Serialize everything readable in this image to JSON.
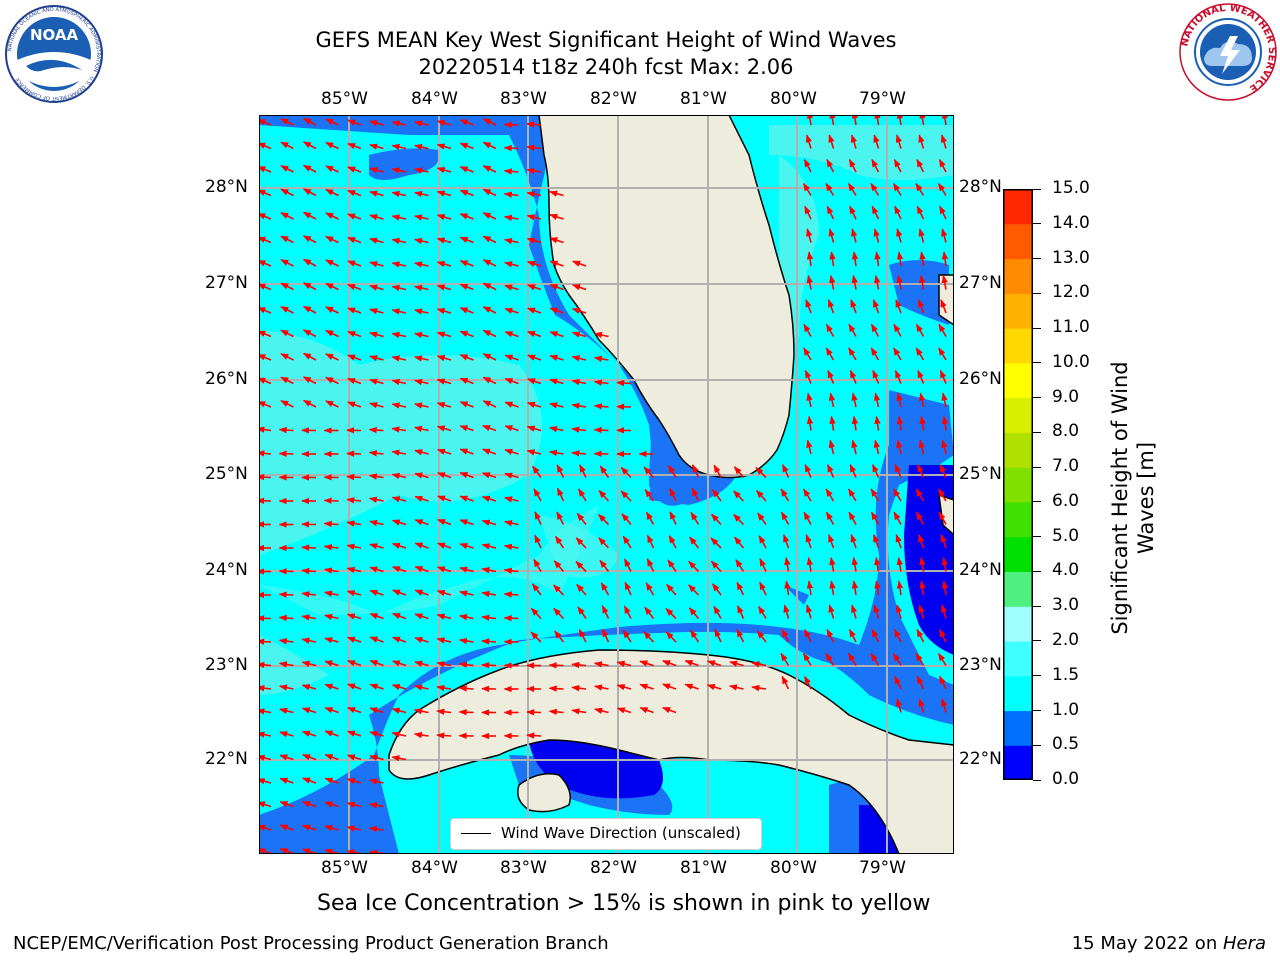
{
  "title": {
    "line1": "GEFS MEAN Key West Significant Height of Wind Waves",
    "line2": "20220514 t18z 240h fcst   Max: 2.06"
  },
  "logos": {
    "noaa_text": "NOAA",
    "noaa_ring": "NATIONAL OCEANIC AND ATMOSPHERIC ADMINISTRATION · U.S. DEPARTMENT OF COMMERCE",
    "nws_ring": "NATIONAL WEATHER SERVICE"
  },
  "map": {
    "lon_labels": [
      "85°W",
      "84°W",
      "83°W",
      "82°W",
      "81°W",
      "80°W",
      "79°W"
    ],
    "lat_labels": [
      "28°N",
      "27°N",
      "26°N",
      "25°N",
      "24°N",
      "23°N",
      "22°N"
    ],
    "legend_label": "Wind Wave Direction (unscaled)",
    "colors": {
      "land": "#eeecdc",
      "sea_1_0_1_5": "#00ffff",
      "sea_0_5_1_0": "#1a74f5",
      "sea_0_0_0_5": "#0000f0",
      "sea_1_5_2_0": "#4af5f0",
      "arrow": "#ff0000",
      "grid": "#b0b0b0"
    }
  },
  "colorbar": {
    "label_line1": "Significant Height of Wind",
    "label_line2": "Waves [m]",
    "ticks": [
      "0.0",
      "0.5",
      "1.0",
      "1.5",
      "2.0",
      "3.0",
      "4.0",
      "5.0",
      "6.0",
      "7.0",
      "8.0",
      "9.0",
      "10.0",
      "11.0",
      "12.0",
      "13.0",
      "14.0",
      "15.0"
    ],
    "colors": [
      "#0000ff",
      "#0070ff",
      "#00ffff",
      "#40ffff",
      "#a0ffff",
      "#50f080",
      "#00e000",
      "#40e000",
      "#80e000",
      "#b0e000",
      "#d8f000",
      "#ffff00",
      "#ffd800",
      "#ffb000",
      "#ff8c00",
      "#ff5a00",
      "#ff2800",
      "#ff0000"
    ]
  },
  "chart_data": {
    "type": "heatmap",
    "title": "GEFS MEAN Key West Significant Height of Wind Waves",
    "subtitle": "20220514 t18z 240h fcst   Max: 2.06",
    "x": [
      "85°W",
      "84°W",
      "83°W",
      "82°W",
      "81°W",
      "80°W",
      "79°W"
    ],
    "y": [
      "28°N",
      "27°N",
      "26°N",
      "25°N",
      "24°N",
      "23°N",
      "22°N"
    ],
    "colorbar_label": "Significant Height of Wind Waves [m]",
    "colorbar_range": [
      0.0,
      15.0
    ],
    "max_value": 2.06,
    "legend": [
      "Wind Wave Direction (unscaled)"
    ],
    "grid": true
  },
  "notes": {
    "sea_ice": "Sea Ice Concentration > 15% is shown in pink to yellow"
  },
  "footer": {
    "left": "NCEP/EMC/Verification Post Processing Product Generation Branch",
    "right_date": "15 May 2022 on ",
    "right_machine": "Hera"
  }
}
